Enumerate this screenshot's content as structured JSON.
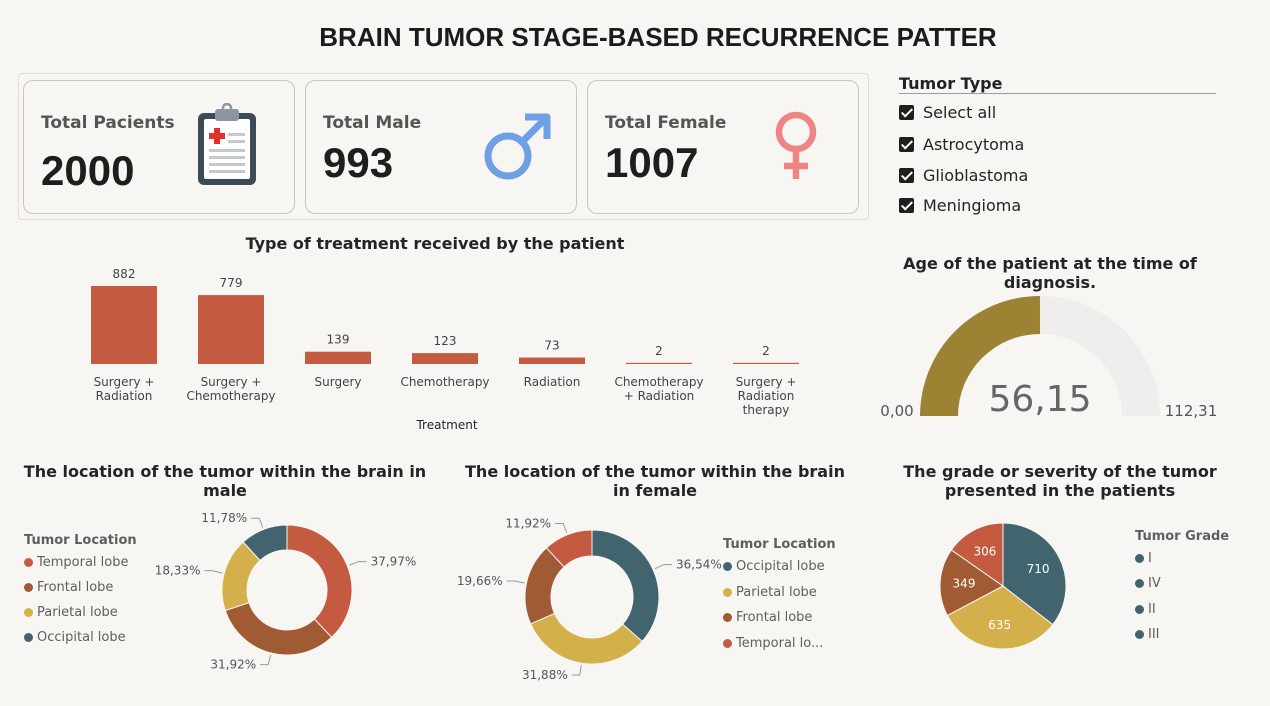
{
  "title": "BRAIN TUMOR STAGE-BASED RECURRENCE PATTER",
  "kpis": {
    "patients": {
      "label": "Total Pacients",
      "value": "2000"
    },
    "male": {
      "label": "Total Male",
      "value": "993"
    },
    "female": {
      "label": "Total Female",
      "value": "1007"
    }
  },
  "slicer": {
    "title": "Tumor Type",
    "items": [
      {
        "label": "Select all"
      },
      {
        "label": "Astrocytoma"
      },
      {
        "label": "Glioblastoma"
      },
      {
        "label": "Meningioma"
      }
    ]
  },
  "colors": {
    "red": "#c45a40",
    "brown": "#a05b35",
    "gold": "#d4b04a",
    "teal": "#41646f",
    "olive": "#9c8334",
    "track": "#efeeec"
  },
  "chart_data": [
    {
      "type": "bar",
      "title": "Type of treatment received by the patient",
      "xlabel": "Treatment",
      "categories": [
        [
          "Surgery +",
          "Radiation"
        ],
        [
          "Surgery +",
          "Chemotherapy"
        ],
        [
          "Surgery"
        ],
        [
          "Chemotherapy"
        ],
        [
          "Radiation"
        ],
        [
          "Chemotherapy",
          "+ Radiation"
        ],
        [
          "Surgery +",
          "Radiation",
          "therapy"
        ]
      ],
      "values": [
        882,
        779,
        139,
        123,
        73,
        2,
        2
      ],
      "color": "#c45a40"
    },
    {
      "type": "gauge",
      "title": "Age of the patient at the time of diagnosis.",
      "value": 56.15,
      "min": 0,
      "max": 112.31,
      "value_label": "56,15",
      "min_label": "0,00",
      "max_label": "112,31"
    },
    {
      "type": "pie",
      "title": "The location of the tumor within the brain in male",
      "legend_title": "Tumor Location",
      "legend": [
        "Temporal lobe",
        "Frontal lobe",
        "Parietal lobe",
        "Occipital lobe"
      ],
      "slices": [
        {
          "name": "Temporal lobe",
          "value": 37.97,
          "label": "37,97%",
          "color": "#c45a40"
        },
        {
          "name": "Frontal lobe",
          "value": 31.92,
          "label": "31,92%",
          "color": "#a05b35"
        },
        {
          "name": "Parietal lobe",
          "value": 18.33,
          "label": "18,33%",
          "color": "#d4b04a"
        },
        {
          "name": "Occipital lobe",
          "value": 11.78,
          "label": "11,78%",
          "color": "#41646f"
        }
      ]
    },
    {
      "type": "pie",
      "title": "The location of the tumor within the brain in female",
      "legend_title": "Tumor Location",
      "legend": [
        "Occipital lobe",
        "Parietal lobe",
        "Frontal lobe",
        "Temporal lo..."
      ],
      "slices": [
        {
          "name": "Occipital lobe",
          "value": 36.54,
          "label": "36,54%",
          "color": "#41646f"
        },
        {
          "name": "Parietal lobe",
          "value": 31.88,
          "label": "31,88%",
          "color": "#d4b04a"
        },
        {
          "name": "Frontal lobe",
          "value": 19.66,
          "label": "19,66%",
          "color": "#a05b35"
        },
        {
          "name": "Temporal lobe",
          "value": 11.92,
          "label": "11,92%",
          "color": "#c45a40"
        }
      ]
    },
    {
      "type": "pie",
      "title": "The grade or severity of the tumor presented in the patients",
      "legend_title": "Tumor Grade",
      "legend": [
        "I",
        "IV",
        "II",
        "III"
      ],
      "slices": [
        {
          "name": "I",
          "value": 710,
          "label": "710",
          "color": "#41646f"
        },
        {
          "name": "IV",
          "value": 635,
          "label": "635",
          "color": "#d4b04a"
        },
        {
          "name": "II",
          "value": 349,
          "label": "349",
          "color": "#a05b35"
        },
        {
          "name": "III",
          "value": 306,
          "label": "306",
          "color": "#c45a40"
        }
      ]
    }
  ]
}
